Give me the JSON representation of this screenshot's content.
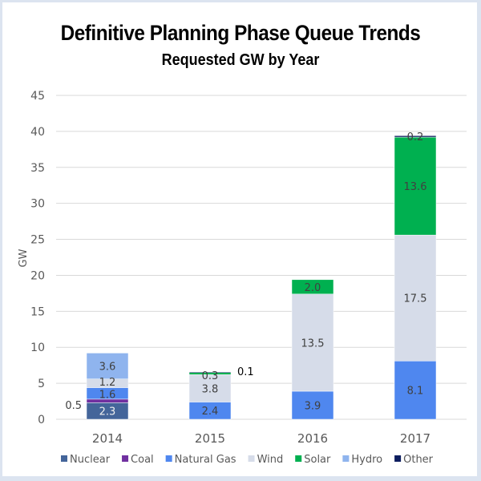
{
  "chart_data": {
    "type": "bar",
    "stacked": true,
    "title": "Definitive Planning Phase Queue Trends",
    "subtitle": "Requested GW by Year",
    "xlabel": "",
    "ylabel": "GW",
    "ylim": [
      0,
      45
    ],
    "yticks": [
      0,
      5,
      10,
      15,
      20,
      25,
      30,
      35,
      40,
      45
    ],
    "grid": true,
    "legend_position": "bottom",
    "categories": [
      "2014",
      "2015",
      "2016",
      "2017"
    ],
    "series": [
      {
        "name": "Nuclear",
        "color": "#44659a",
        "values": [
          2.3,
          0,
          0,
          0
        ]
      },
      {
        "name": "Coal",
        "color": "#7030a0",
        "values": [
          0.5,
          0,
          0,
          0
        ]
      },
      {
        "name": "Natural Gas",
        "color": "#4f87ef",
        "values": [
          1.6,
          2.4,
          3.9,
          8.1
        ]
      },
      {
        "name": "Wind",
        "color": "#d6dce9",
        "values": [
          1.2,
          3.8,
          13.5,
          17.5
        ]
      },
      {
        "name": "Solar",
        "color": "#00b050",
        "values": [
          0,
          0.3,
          2.0,
          13.6
        ]
      },
      {
        "name": "Hydro",
        "color": "#8fb4ee",
        "values": [
          3.6,
          0,
          0,
          0
        ]
      },
      {
        "name": "Other",
        "color": "#0d1d5e",
        "values": [
          0,
          0.1,
          0,
          0.2
        ]
      }
    ],
    "data_labels": [
      {
        "category": "2014",
        "series": "Nuclear",
        "text": "2.3"
      },
      {
        "category": "2014",
        "series": "Coal",
        "text": "0.5",
        "placement": "left"
      },
      {
        "category": "2014",
        "series": "Natural Gas",
        "text": "1.6"
      },
      {
        "category": "2014",
        "series": "Wind",
        "text": "1.2"
      },
      {
        "category": "2014",
        "series": "Hydro",
        "text": "3.6"
      },
      {
        "category": "2015",
        "series": "Natural Gas",
        "text": "2.4"
      },
      {
        "category": "2015",
        "series": "Wind",
        "text": "3.8"
      },
      {
        "category": "2015",
        "series": "Solar",
        "text": "0.3"
      },
      {
        "category": "2015",
        "series": "Other",
        "text": "0.1",
        "placement": "right"
      },
      {
        "category": "2016",
        "series": "Natural Gas",
        "text": "3.9"
      },
      {
        "category": "2016",
        "series": "Wind",
        "text": "13.5"
      },
      {
        "category": "2016",
        "series": "Solar",
        "text": "2.0"
      },
      {
        "category": "2017",
        "series": "Natural Gas",
        "text": "8.1"
      },
      {
        "category": "2017",
        "series": "Wind",
        "text": "17.5"
      },
      {
        "category": "2017",
        "series": "Solar",
        "text": "13.6"
      },
      {
        "category": "2017",
        "series": "Other",
        "text": "0.2"
      }
    ]
  }
}
